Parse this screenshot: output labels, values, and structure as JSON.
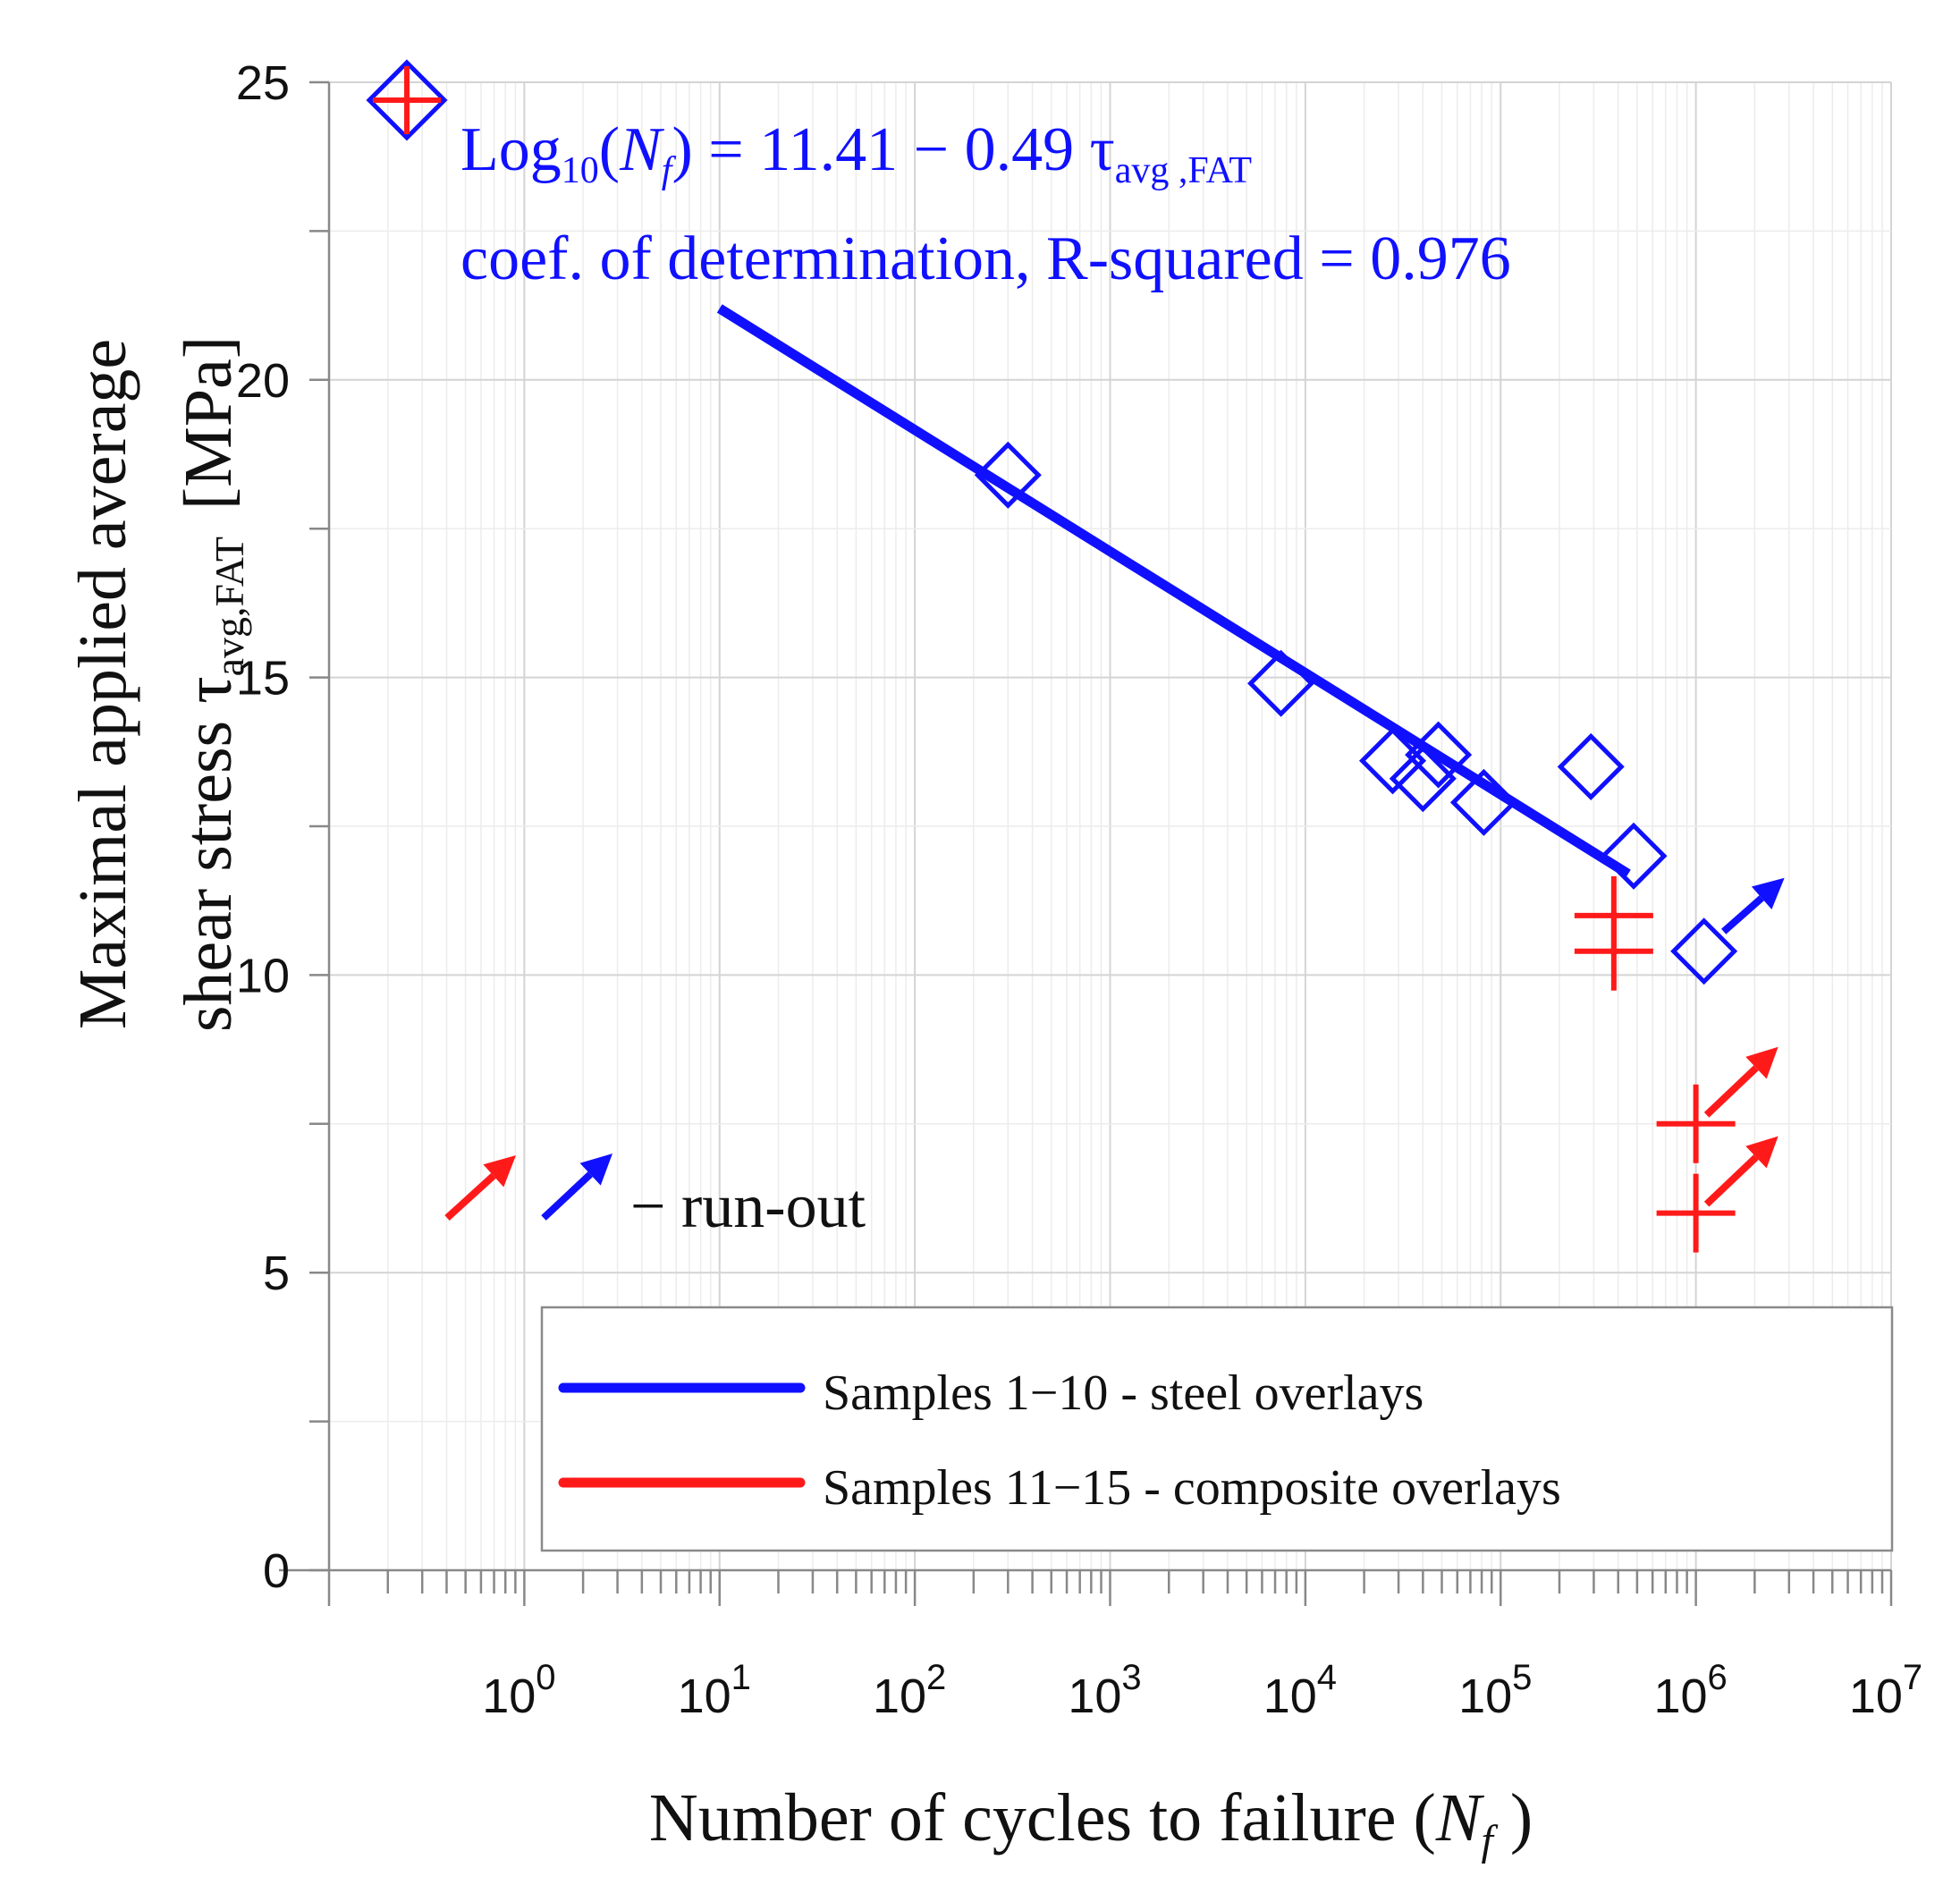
{
  "chart_data": {
    "type": "scatter",
    "x_scale": "log",
    "xlabel": "Number of cycles to failure (",
    "xlabel_var": "N",
    "xlabel_sub": "f",
    "xlabel_close": " )",
    "ylabel_line1": "Maximal applied average",
    "ylabel_line2_prefix": "shear stress τ",
    "ylabel_line2_sub": "avg,FAT",
    "ylabel_line2_unit": "[MPa]",
    "xlim_log10": [
      -1,
      7
    ],
    "ylim": [
      0,
      25
    ],
    "y_ticks": [
      {
        "value": 0,
        "label": "0"
      },
      {
        "value": 5,
        "label": "5"
      },
      {
        "value": 10,
        "label": "10"
      },
      {
        "value": 15,
        "label": "15"
      },
      {
        "value": 20,
        "label": "20"
      },
      {
        "value": 25,
        "label": "25"
      }
    ],
    "x_ticks": [
      {
        "exp": 0,
        "base": "10",
        "sup": "0"
      },
      {
        "exp": 1,
        "base": "10",
        "sup": "1"
      },
      {
        "exp": 2,
        "base": "10",
        "sup": "2"
      },
      {
        "exp": 3,
        "base": "10",
        "sup": "3"
      },
      {
        "exp": 4,
        "base": "10",
        "sup": "4"
      },
      {
        "exp": 5,
        "base": "10",
        "sup": "5"
      },
      {
        "exp": 6,
        "base": "10",
        "sup": "6"
      },
      {
        "exp": 7,
        "base": "10",
        "sup": "7"
      }
    ],
    "series": [
      {
        "name": "Samples 1−10 - steel overlays",
        "color": "#1010ff",
        "marker": "diamond",
        "points": [
          {
            "x": 300,
            "y": 18.4
          },
          {
            "x": 7500,
            "y": 14.9
          },
          {
            "x": 28000,
            "y": 13.6
          },
          {
            "x": 40000,
            "y": 13.3
          },
          {
            "x": 48000,
            "y": 13.7
          },
          {
            "x": 82000,
            "y": 12.9
          },
          {
            "x": 290000,
            "y": 13.5
          },
          {
            "x": 480000,
            "y": 12.0
          },
          {
            "x": 1100000,
            "y": 10.4,
            "runout": true
          }
        ],
        "fit": {
          "x_start": 10,
          "x_end": 450000,
          "y_start": 21.2,
          "y_end": 11.7
        }
      },
      {
        "name": "Samples  11−15 - composite overlays",
        "color": "#ff1a1a",
        "marker": "plus",
        "points": [
          {
            "x": 380000,
            "y": 11.0
          },
          {
            "x": 380000,
            "y": 10.4
          },
          {
            "x": 1000000,
            "y": 7.5,
            "runout": true
          },
          {
            "x": 1000000,
            "y": 6.0,
            "runout": true
          }
        ]
      }
    ],
    "annotations": {
      "equation_prefix": "Log",
      "equation_log_sub": "10",
      "equation_open": "(",
      "equation_var": "N",
      "equation_var_sub": "f",
      "equation_rest": ") = 11.41 − 0.49 τ",
      "equation_tau_sub": "avg ,FAT",
      "r_squared_text": "coef. of determination, R-squared  = 0.976",
      "runout_text": "− run-out"
    },
    "legend": {
      "placement": "bottom-right",
      "items": [
        {
          "label": "Samples 1−10 - steel overlays",
          "color": "#1010ff"
        },
        {
          "label": "Samples  11−15 - composite overlays",
          "color": "#ff1a1a"
        }
      ]
    },
    "header_marker": {
      "y": 24.7
    }
  }
}
